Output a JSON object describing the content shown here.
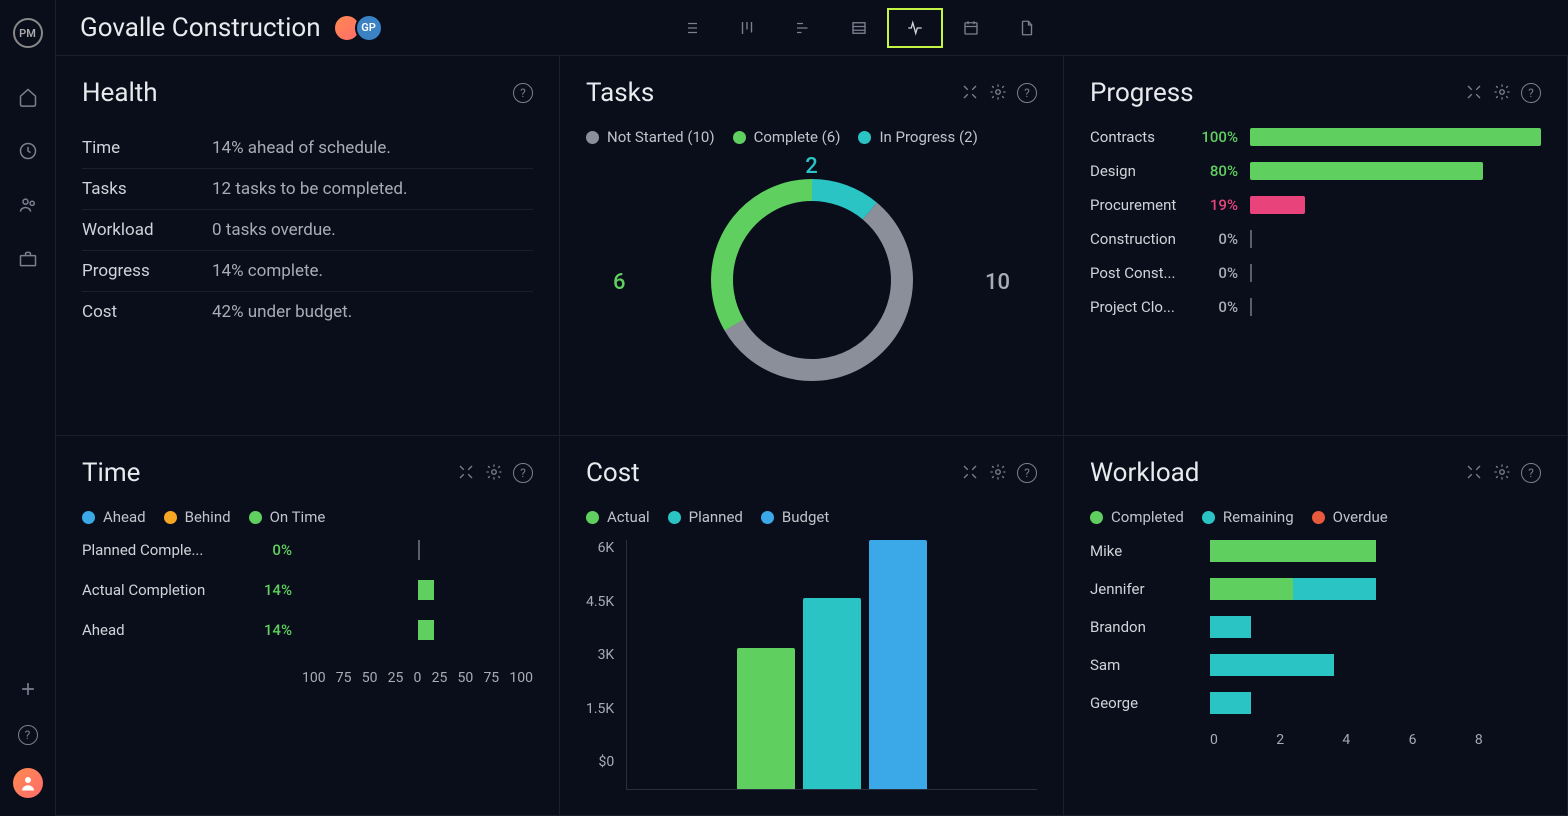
{
  "header": {
    "logo_text": "PM",
    "project_title": "Govalle Construction",
    "avatars": [
      "",
      "GP"
    ]
  },
  "view_nav": {
    "active_index": 4,
    "items": [
      "list",
      "board",
      "gantt",
      "table",
      "pulse",
      "calendar",
      "file"
    ]
  },
  "panels": {
    "health": {
      "title": "Health",
      "rows": [
        {
          "label": "Time",
          "value": "14% ahead of schedule."
        },
        {
          "label": "Tasks",
          "value": "12 tasks to be completed."
        },
        {
          "label": "Workload",
          "value": "0 tasks overdue."
        },
        {
          "label": "Progress",
          "value": "14% complete."
        },
        {
          "label": "Cost",
          "value": "42% under budget."
        }
      ]
    },
    "tasks": {
      "title": "Tasks",
      "legend": [
        {
          "label": "Not Started (10)",
          "color": "#8a8f9a",
          "value": 10
        },
        {
          "label": "Complete (6)",
          "color": "#5fcf5f",
          "value": 6
        },
        {
          "label": "In Progress (2)",
          "color": "#2bc4c4",
          "value": 2
        }
      ],
      "donut": {
        "segments": [
          {
            "value": 10,
            "color": "#8a8f9a",
            "label": "10",
            "label_color": "#a8acb5"
          },
          {
            "value": 6,
            "color": "#5fcf5f",
            "label": "6",
            "label_color": "#5fcf5f"
          },
          {
            "value": 2,
            "color": "#2bc4c4",
            "label": "2",
            "label_color": "#2bc4c4"
          }
        ],
        "stroke_width": 22,
        "radius": 90
      }
    },
    "progress": {
      "title": "Progress",
      "rows": [
        {
          "name": "Contracts",
          "pct": 100,
          "pct_label": "100%",
          "color": "#5fcf5f",
          "pct_color": "#5fcf5f"
        },
        {
          "name": "Design",
          "pct": 80,
          "pct_label": "80%",
          "color": "#5fcf5f",
          "pct_color": "#5fcf5f"
        },
        {
          "name": "Procurement",
          "pct": 19,
          "pct_label": "19%",
          "color": "#e8447b",
          "pct_color": "#e8447b"
        },
        {
          "name": "Construction",
          "pct": 0,
          "pct_label": "0%",
          "color": "#5a5f6e",
          "pct_color": "#a8acb5"
        },
        {
          "name": "Post Const...",
          "pct": 0,
          "pct_label": "0%",
          "color": "#5a5f6e",
          "pct_color": "#a8acb5"
        },
        {
          "name": "Project Clo...",
          "pct": 0,
          "pct_label": "0%",
          "color": "#5a5f6e",
          "pct_color": "#a8acb5"
        }
      ]
    },
    "time": {
      "title": "Time",
      "legend": [
        {
          "label": "Ahead",
          "color": "#3ba8e8"
        },
        {
          "label": "Behind",
          "color": "#f5a623"
        },
        {
          "label": "On Time",
          "color": "#5fcf5f"
        }
      ],
      "rows": [
        {
          "name": "Planned Comple...",
          "pct_label": "0%",
          "bar_pct": 0
        },
        {
          "name": "Actual Completion",
          "pct_label": "14%",
          "bar_pct": 14
        },
        {
          "name": "Ahead",
          "pct_label": "14%",
          "bar_pct": 14
        }
      ],
      "axis": [
        "100",
        "75",
        "50",
        "25",
        "0",
        "25",
        "50",
        "75",
        "100"
      ],
      "bar_color": "#5fcf5f"
    },
    "cost": {
      "title": "Cost",
      "legend": [
        {
          "label": "Actual",
          "color": "#5fcf5f"
        },
        {
          "label": "Planned",
          "color": "#2bc4c4"
        },
        {
          "label": "Budget",
          "color": "#3ba8e8"
        }
      ],
      "ymax": 6000,
      "yticks": [
        "6K",
        "4.5K",
        "3K",
        "1.5K",
        "$0"
      ],
      "bars": [
        {
          "value": 3400,
          "color": "#5fcf5f"
        },
        {
          "value": 4600,
          "color": "#2bc4c4"
        },
        {
          "value": 6000,
          "color": "#3ba8e8"
        }
      ]
    },
    "workload": {
      "title": "Workload",
      "legend": [
        {
          "label": "Completed",
          "color": "#5fcf5f"
        },
        {
          "label": "Remaining",
          "color": "#2bc4c4"
        },
        {
          "label": "Overdue",
          "color": "#e85a3b"
        }
      ],
      "xmax": 8,
      "rows": [
        {
          "name": "Mike",
          "segments": [
            {
              "value": 4,
              "color": "#5fcf5f"
            }
          ]
        },
        {
          "name": "Jennifer",
          "segments": [
            {
              "value": 2,
              "color": "#5fcf5f"
            },
            {
              "value": 2,
              "color": "#2bc4c4"
            }
          ]
        },
        {
          "name": "Brandon",
          "segments": [
            {
              "value": 1,
              "color": "#2bc4c4"
            }
          ]
        },
        {
          "name": "Sam",
          "segments": [
            {
              "value": 3,
              "color": "#2bc4c4"
            }
          ]
        },
        {
          "name": "George",
          "segments": [
            {
              "value": 1,
              "color": "#2bc4c4"
            }
          ]
        }
      ],
      "axis": [
        "0",
        "2",
        "4",
        "6",
        "8"
      ]
    }
  },
  "colors": {
    "bg": "#0a0e1a",
    "border": "#1a1f2e",
    "text": "#d0d3d9",
    "muted": "#a8acb5",
    "accent": "#c4f542"
  }
}
